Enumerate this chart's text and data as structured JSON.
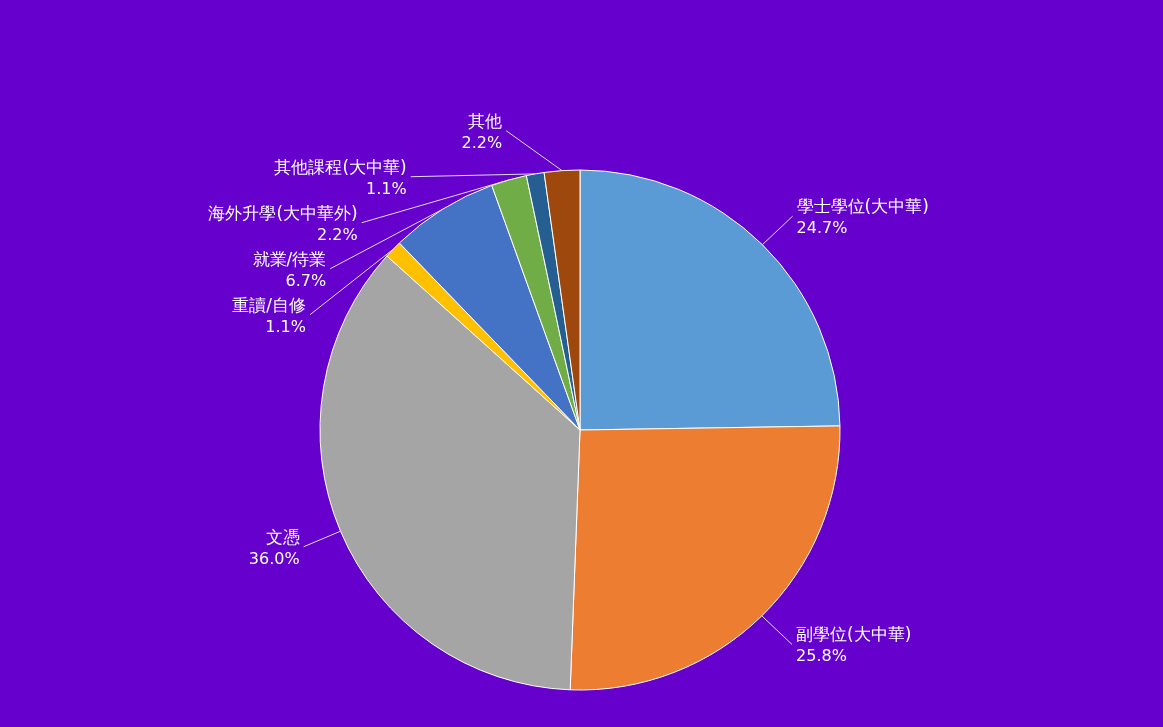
{
  "chart_data": {
    "type": "pie",
    "categories": [
      "學士學位(大中華)",
      "副學位(大中華)",
      "文憑",
      "重讀/自修",
      "就業/待業",
      "海外升學(大中華外)",
      "其他課程(大中華)",
      "其他"
    ],
    "values": [
      24.7,
      25.8,
      36.0,
      1.1,
      6.7,
      2.2,
      1.1,
      2.2
    ],
    "colors": [
      "#5b9bd5",
      "#ed7d31",
      "#a5a5a5",
      "#ffc000",
      "#4472c4",
      "#70ad47",
      "#255e91",
      "#9e480e"
    ],
    "value_labels": [
      "24.7%",
      "25.8%",
      "36.0%",
      "1.1%",
      "6.7%",
      "2.2%",
      "1.1%",
      "2.2%"
    ]
  }
}
